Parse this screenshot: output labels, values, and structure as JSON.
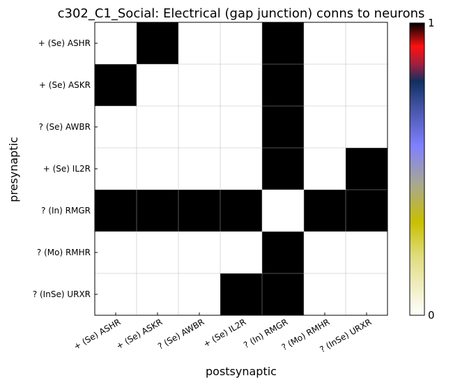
{
  "chart_data": {
    "type": "heatmap",
    "title": "c302_C1_Social: Electrical (gap junction) conns to neurons",
    "xlabel": "postsynaptic",
    "ylabel": "presynaptic",
    "x_categories": [
      "+ (Se) ASHR",
      "+ (Se) ASKR",
      "? (Se) AWBR",
      "+ (Se) IL2R",
      "? (In) RMGR",
      "? (Mo) RMHR",
      "? (InSe) URXR"
    ],
    "y_categories": [
      "+ (Se) ASHR",
      "+ (Se) ASKR",
      "? (Se) AWBR",
      "+ (Se) IL2R",
      "? (In) RMGR",
      "? (Mo) RMHR",
      "? (InSe) URXR"
    ],
    "values": [
      [
        0,
        1,
        0,
        0,
        1,
        0,
        0
      ],
      [
        1,
        0,
        0,
        0,
        1,
        0,
        0
      ],
      [
        0,
        0,
        0,
        0,
        1,
        0,
        0
      ],
      [
        0,
        0,
        0,
        0,
        1,
        0,
        1
      ],
      [
        1,
        1,
        1,
        1,
        0,
        1,
        1
      ],
      [
        0,
        0,
        0,
        0,
        1,
        0,
        0
      ],
      [
        0,
        0,
        0,
        1,
        1,
        0,
        0
      ]
    ],
    "vlim": [
      0,
      1
    ],
    "grid": true,
    "colorbar": {
      "min_label": "0",
      "max_label": "1",
      "colormap_stops": [
        {
          "t": 0.0,
          "color": "#ffffff"
        },
        {
          "t": 0.2,
          "color": "#e0dc80"
        },
        {
          "t": 0.32,
          "color": "#c8c000"
        },
        {
          "t": 0.45,
          "color": "#a8a890"
        },
        {
          "t": 0.58,
          "color": "#8080ff"
        },
        {
          "t": 0.72,
          "color": "#4050a0"
        },
        {
          "t": 0.8,
          "color": "#103060"
        },
        {
          "t": 0.86,
          "color": "#a02040"
        },
        {
          "t": 0.92,
          "color": "#ff1010"
        },
        {
          "t": 1.0,
          "color": "#000000"
        }
      ]
    }
  }
}
